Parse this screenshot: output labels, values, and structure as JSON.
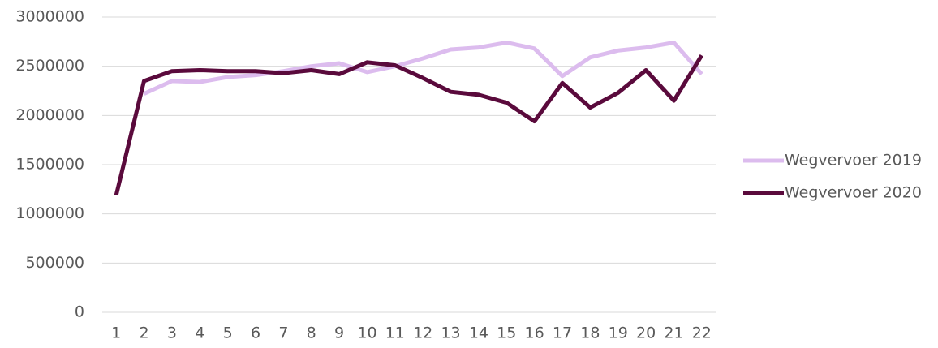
{
  "chart_data": {
    "type": "line",
    "categories": [
      "1",
      "2",
      "3",
      "4",
      "5",
      "6",
      "7",
      "8",
      "9",
      "10",
      "11",
      "12",
      "13",
      "14",
      "15",
      "16",
      "17",
      "18",
      "19",
      "20",
      "21",
      "22"
    ],
    "series": [
      {
        "name": "Wegvervoer 2019",
        "color": "#dcbcee",
        "values": [
          null,
          2220000,
          2350000,
          2340000,
          2390000,
          2410000,
          2450000,
          2500000,
          2530000,
          2440000,
          2500000,
          2580000,
          2670000,
          2690000,
          2740000,
          2680000,
          2400000,
          2590000,
          2660000,
          2690000,
          2740000,
          2420000
        ]
      },
      {
        "name": "Wegvervoer 2020",
        "color": "#5a0a3c",
        "values": [
          1190000,
          2350000,
          2450000,
          2460000,
          2450000,
          2450000,
          2430000,
          2460000,
          2420000,
          2540000,
          2510000,
          2380000,
          2240000,
          2210000,
          2130000,
          1940000,
          2330000,
          2080000,
          2230000,
          2460000,
          2150000,
          2610000
        ]
      }
    ],
    "ylim": [
      0,
      3000000
    ],
    "yticks": [
      0,
      500000,
      1000000,
      1500000,
      2000000,
      2500000,
      3000000
    ],
    "grid": true,
    "legend": "right"
  }
}
